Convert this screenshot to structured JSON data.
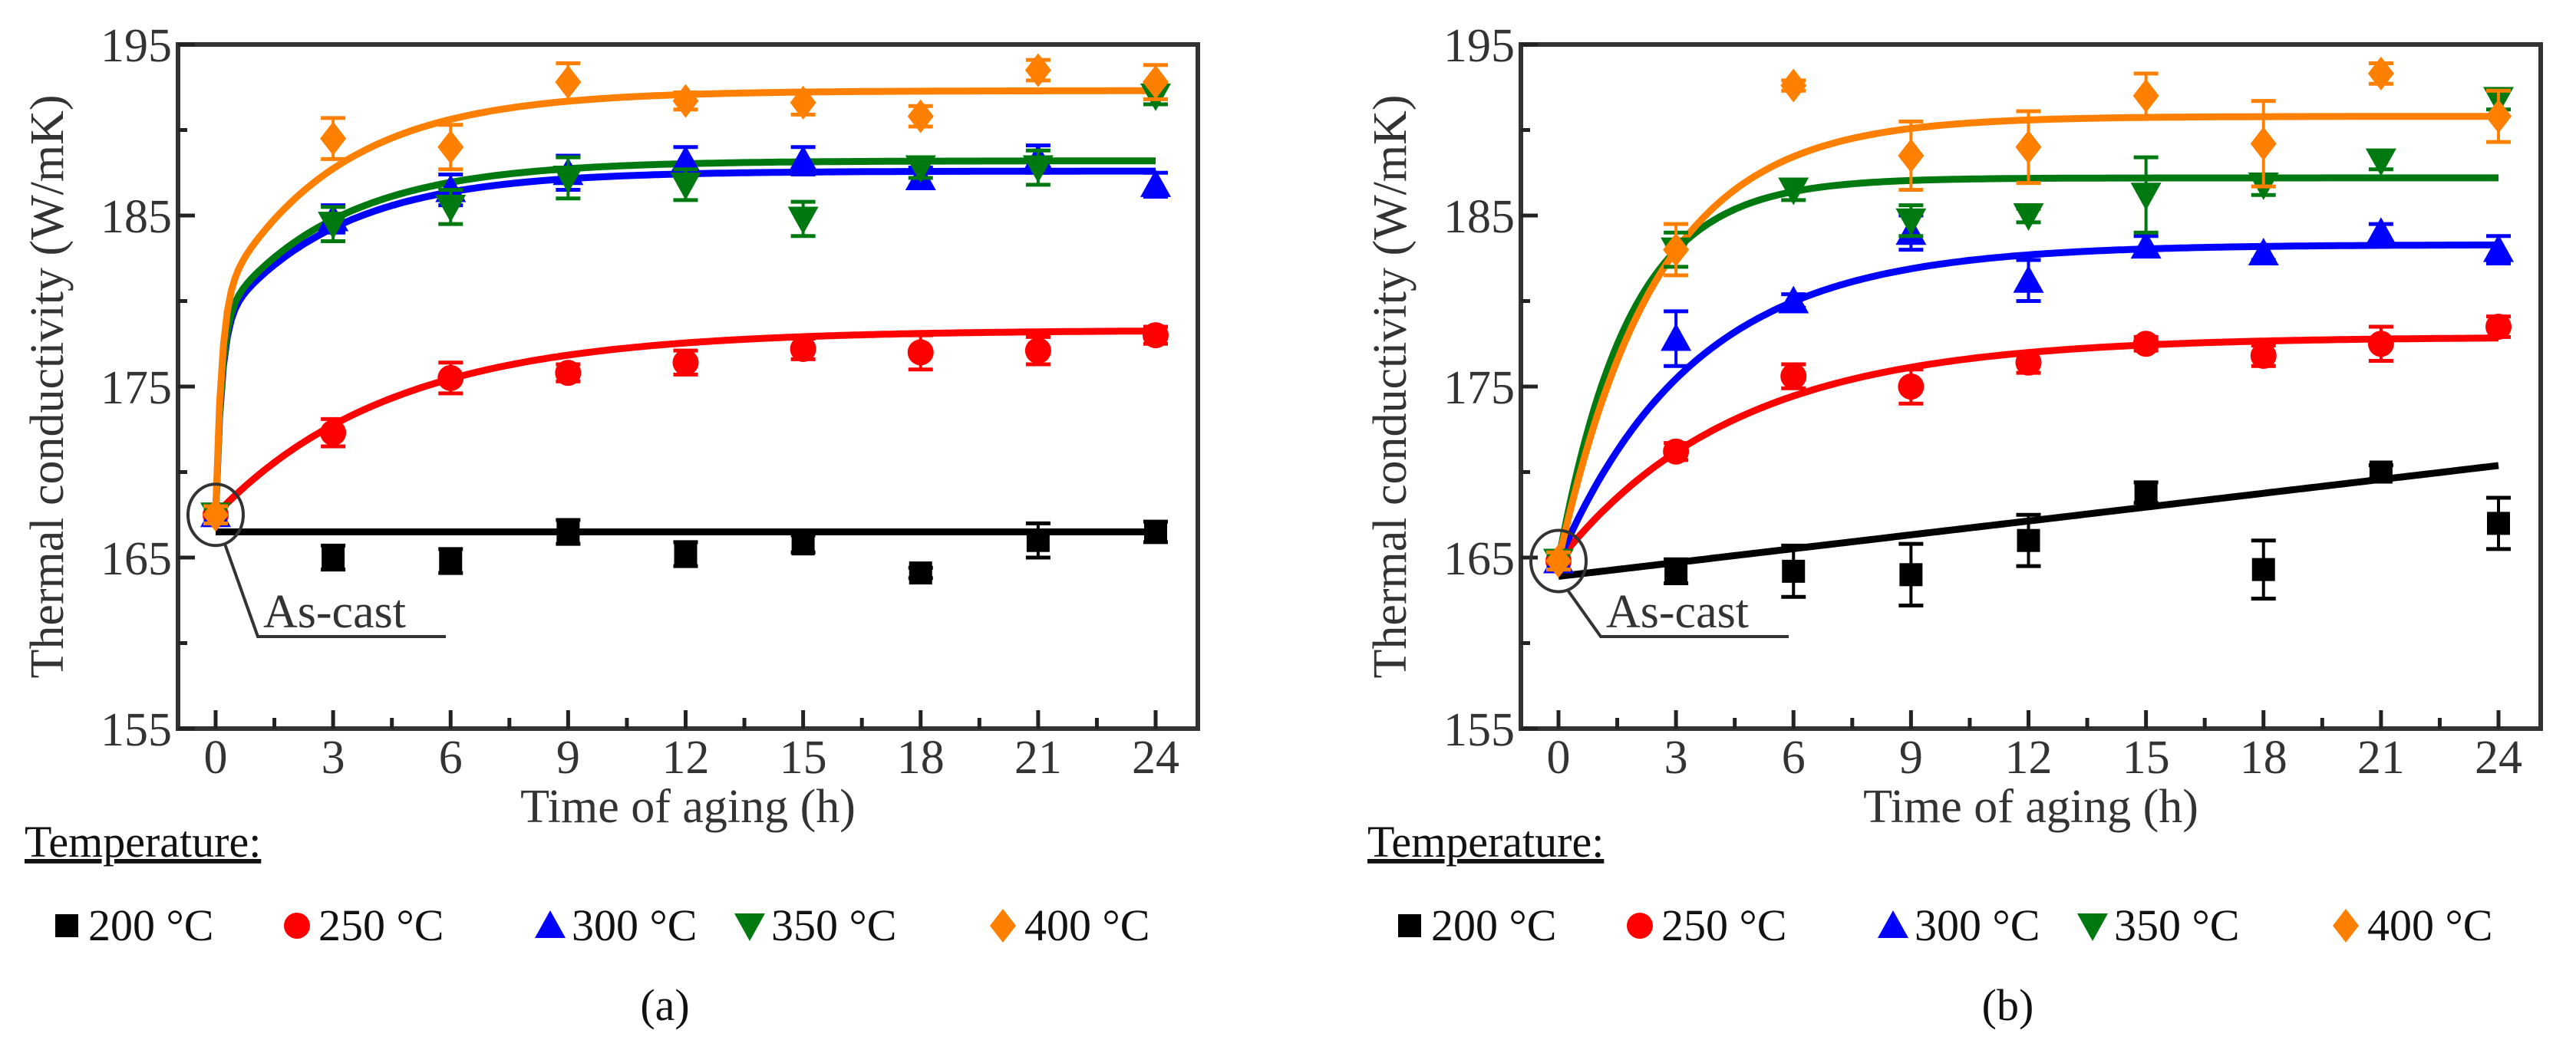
{
  "legend_title": "Temperature:",
  "annotation": "As-cast",
  "chart_data": [
    {
      "type": "scatter",
      "caption": "(a)",
      "xlabel": "Time of aging (h)",
      "ylabel": "Thermal conductivity (W/mK)",
      "xlim": [
        0,
        24
      ],
      "ylim": [
        155,
        195
      ],
      "xticks": [
        0,
        3,
        6,
        9,
        12,
        15,
        18,
        21,
        24
      ],
      "yticks": [
        155,
        165,
        175,
        185,
        195
      ],
      "grid": false,
      "legend_position": "bottom",
      "x": [
        0,
        3,
        6,
        9,
        12,
        15,
        18,
        21,
        24
      ],
      "series": [
        {
          "name": "200 °C",
          "color": "#000000",
          "marker": "square",
          "values": [
            167.5,
            165.0,
            164.8,
            166.5,
            165.2,
            165.8,
            164.1,
            166.0,
            166.5
          ],
          "errors": [
            0.6,
            0.7,
            0.7,
            0.7,
            0.7,
            0.5,
            0.3,
            1.0,
            0.6
          ],
          "fit": {
            "kind": "linear",
            "intercept": 166.5,
            "slope": 0
          }
        },
        {
          "name": "250 °C",
          "color": "#ff0000",
          "marker": "circle",
          "values": [
            167.5,
            172.3,
            175.5,
            175.8,
            176.4,
            177.2,
            177.0,
            177.1,
            178.0
          ],
          "errors": [
            0.5,
            0.8,
            0.9,
            0.5,
            0.7,
            0.6,
            1.0,
            0.8,
            0.5
          ],
          "fit": {
            "kind": "exp",
            "plateau": 178.3,
            "w": 0,
            "tau": 4.5
          }
        },
        {
          "name": "300 °C",
          "color": "#0000ff",
          "marker": "triangle-up",
          "values": [
            167.5,
            184.8,
            186.5,
            187.5,
            188.2,
            188.2,
            187.2,
            188.3,
            186.8
          ],
          "errors": [
            0.5,
            0.8,
            0.9,
            1.0,
            0.8,
            0.8,
            0.6,
            0.8,
            0.7
          ],
          "fit": {
            "kind": "exp",
            "plateau": 187.6,
            "w": 0.55,
            "tau": 3
          }
        },
        {
          "name": "350 °C",
          "color": "#007a10",
          "marker": "triangle-down",
          "values": [
            167.5,
            184.5,
            185.5,
            187.2,
            186.8,
            184.8,
            187.8,
            187.8,
            192.0
          ],
          "errors": [
            0.5,
            1.0,
            1.0,
            1.2,
            0.9,
            1.0,
            0.6,
            1.0,
            0.5
          ],
          "fit": {
            "kind": "exp",
            "plateau": 188.2,
            "w": 0.55,
            "tau": 3
          }
        },
        {
          "name": "400 °C",
          "color": "#ff8000",
          "marker": "diamond",
          "values": [
            167.5,
            189.5,
            189.0,
            192.8,
            191.7,
            191.6,
            190.8,
            193.5,
            192.8
          ],
          "errors": [
            0.5,
            1.2,
            1.3,
            1.1,
            0.5,
            0.7,
            0.6,
            0.6,
            1.0
          ],
          "fit": {
            "kind": "exp",
            "plateau": 192.3,
            "w": 0.5,
            "tau": 3
          }
        }
      ]
    },
    {
      "type": "scatter",
      "caption": "(b)",
      "xlabel": "Time of aging (h)",
      "ylabel": "Thermal conductivity (W/mK)",
      "xlim": [
        0,
        24
      ],
      "ylim": [
        155,
        195
      ],
      "xticks": [
        0,
        3,
        6,
        9,
        12,
        15,
        18,
        21,
        24
      ],
      "yticks": [
        155,
        165,
        175,
        185,
        195
      ],
      "grid": false,
      "legend_position": "bottom",
      "x": [
        0,
        3,
        6,
        9,
        12,
        15,
        18,
        21,
        24
      ],
      "series": [
        {
          "name": "200 °C",
          "color": "#000000",
          "marker": "square",
          "values": [
            164.8,
            164.2,
            164.2,
            164.0,
            166.0,
            168.8,
            164.3,
            170.0,
            167.0
          ],
          "errors": [
            0.6,
            0.7,
            1.5,
            1.8,
            1.5,
            0.6,
            1.7,
            0.4,
            1.5
          ],
          "fit": {
            "kind": "linear",
            "intercept": 163.9,
            "slope": 0.27
          }
        },
        {
          "name": "250 °C",
          "color": "#ff0000",
          "marker": "circle",
          "values": [
            164.8,
            171.2,
            175.6,
            175.0,
            176.4,
            177.5,
            176.8,
            177.5,
            178.5
          ],
          "errors": [
            0.5,
            0.5,
            0.7,
            1.0,
            0.6,
            0.4,
            0.6,
            1.0,
            0.6
          ],
          "fit": {
            "kind": "exp",
            "plateau": 177.9,
            "w": 0,
            "tau": 4.5
          }
        },
        {
          "name": "300 °C",
          "color": "#0000ff",
          "marker": "triangle-up",
          "values": [
            164.8,
            177.8,
            180.0,
            184.0,
            181.2,
            183.2,
            182.8,
            184.0,
            183.0
          ],
          "errors": [
            0.5,
            1.6,
            0.4,
            1.0,
            1.2,
            0.6,
            0.4,
            0.5,
            0.8
          ],
          "fit": {
            "kind": "exp",
            "plateau": 183.3,
            "w": 0,
            "tau": 3.5
          }
        },
        {
          "name": "350 °C",
          "color": "#007a10",
          "marker": "triangle-down",
          "values": [
            164.8,
            183.0,
            186.5,
            184.7,
            185.0,
            186.2,
            186.8,
            188.2,
            191.8
          ],
          "errors": [
            0.5,
            1.0,
            0.6,
            0.9,
            0.4,
            2.2,
            0.6,
            0.5,
            0.6
          ],
          "fit": {
            "kind": "exp",
            "plateau": 187.2,
            "w": 0,
            "tau": 1.8
          }
        },
        {
          "name": "400 °C",
          "color": "#ff8000",
          "marker": "diamond",
          "values": [
            164.8,
            183.0,
            192.6,
            188.5,
            189.0,
            192.0,
            189.2,
            193.3,
            190.8
          ],
          "errors": [
            0.5,
            1.5,
            0.3,
            2.0,
            2.1,
            1.3,
            2.5,
            0.6,
            1.5
          ],
          "fit": {
            "kind": "exp",
            "plateau": 190.8,
            "w": 0,
            "tau": 2.5
          }
        }
      ]
    }
  ]
}
